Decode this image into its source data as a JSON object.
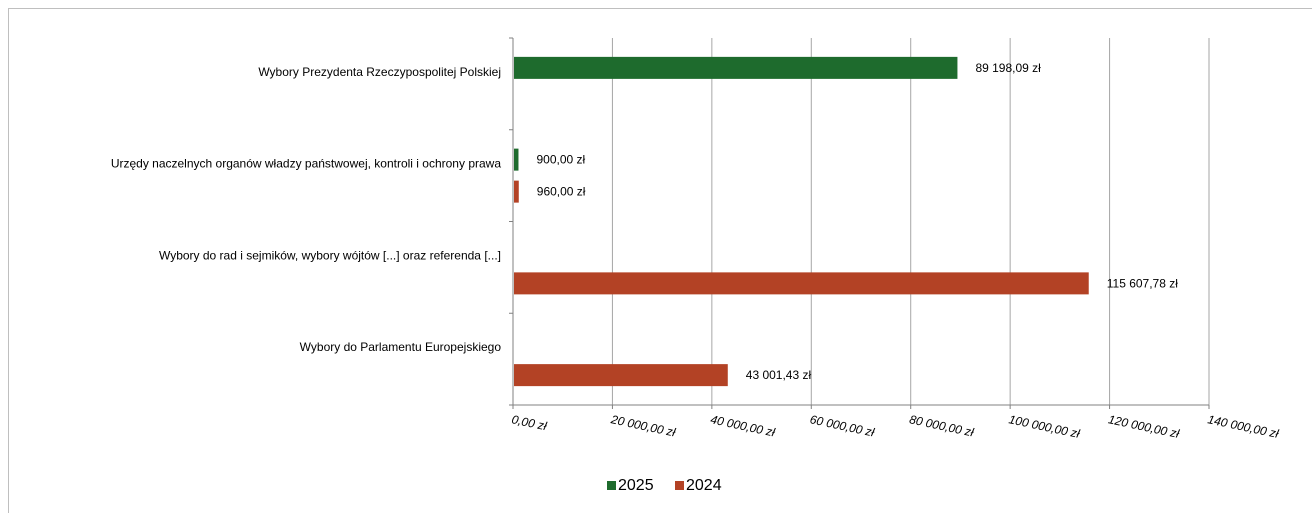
{
  "chart_data": {
    "type": "bar",
    "orientation": "horizontal",
    "categories": [
      "Wybory Prezydenta Rzeczypospolitej Polskiej",
      "Urzędy naczelnych organów władzy państwowej, kontroli i ochrony prawa",
      "Wybory do rad i sejmików,  wybory wójtów [...] oraz referenda [...]",
      "Wybory do Parlamentu Europejskiego"
    ],
    "series": [
      {
        "name": "2025",
        "color": "#1e6b2d",
        "values": [
          89198.09,
          900.0,
          null,
          null
        ],
        "labels": [
          "89 198,09 zł",
          "900,00 zł",
          "",
          ""
        ]
      },
      {
        "name": "2024",
        "color": "#b34225",
        "values": [
          null,
          960.0,
          115607.78,
          43001.43
        ],
        "labels": [
          "",
          "960,00 zł",
          "115 607,78 zł",
          "43 001,43 zł"
        ]
      }
    ],
    "xlim": [
      0,
      140000
    ],
    "xticks": [
      0,
      20000,
      40000,
      60000,
      80000,
      100000,
      120000,
      140000
    ],
    "xtick_labels": [
      "0,00 zł",
      "20 000,00 zł",
      "40 000,00 zł",
      "60 000,00 zł",
      "80 000,00 zł",
      "100 000,00 zł",
      "120 000,00 zł",
      "140 000,00 zł"
    ],
    "grid": "vertical",
    "legend_position": "bottom",
    "title": "",
    "xlabel": "",
    "ylabel": ""
  }
}
